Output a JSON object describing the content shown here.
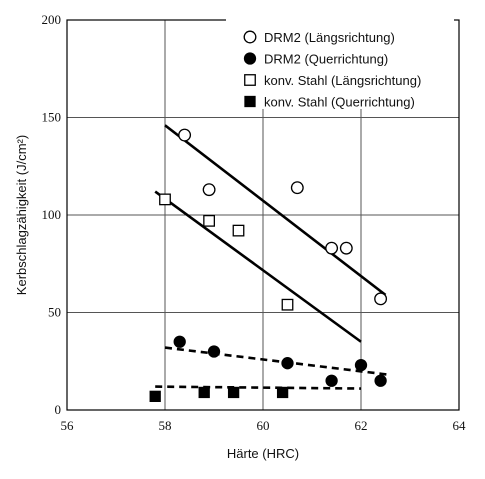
{
  "chart_data": {
    "type": "scatter",
    "title": "",
    "xlabel": "Härte (HRC)",
    "ylabel": "Kerbschlagzähigkeit (J/cm²)",
    "xlim": [
      56,
      64
    ],
    "ylim": [
      0,
      200
    ],
    "xticks": [
      56,
      58,
      60,
      62,
      64
    ],
    "yticks": [
      0,
      50,
      100,
      150,
      200
    ],
    "grid": true,
    "legend_position": "top-right",
    "series": [
      {
        "name": "DRM2 (Längsrichtung)",
        "marker": "circle-open",
        "points": [
          [
            58.4,
            141
          ],
          [
            58.9,
            113
          ],
          [
            60.7,
            114
          ],
          [
            61.4,
            83
          ],
          [
            61.7,
            83
          ],
          [
            62.4,
            57
          ]
        ],
        "fit": [
          [
            58.0,
            146
          ],
          [
            62.5,
            59
          ]
        ],
        "fit_style": "solid"
      },
      {
        "name": "DRM2 (Querrichtung)",
        "marker": "circle-filled",
        "points": [
          [
            58.3,
            35
          ],
          [
            59.0,
            30
          ],
          [
            60.5,
            24
          ],
          [
            61.4,
            15
          ],
          [
            62.0,
            23
          ],
          [
            62.4,
            15
          ]
        ],
        "fit": [
          [
            58.0,
            32
          ],
          [
            62.6,
            18
          ]
        ],
        "fit_style": "dashed"
      },
      {
        "name": "konv. Stahl (Längsrichtung)",
        "marker": "square-open",
        "points": [
          [
            58.0,
            108
          ],
          [
            58.9,
            97
          ],
          [
            59.5,
            92
          ],
          [
            60.5,
            54
          ]
        ],
        "fit": [
          [
            57.8,
            112
          ],
          [
            62.0,
            35
          ]
        ],
        "fit_style": "solid"
      },
      {
        "name": "konv. Stahl (Querrichtung)",
        "marker": "square-filled",
        "points": [
          [
            57.8,
            7
          ],
          [
            58.8,
            9
          ],
          [
            59.4,
            9
          ],
          [
            60.4,
            9
          ]
        ],
        "fit": [
          [
            57.8,
            12
          ],
          [
            62.0,
            11
          ]
        ],
        "fit_style": "dashed"
      }
    ]
  }
}
